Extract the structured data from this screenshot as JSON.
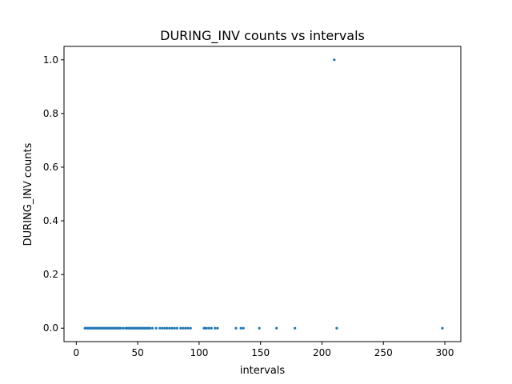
{
  "chart_data": {
    "type": "scatter",
    "title": "DURING_INV counts vs intervals",
    "xlabel": "intervals",
    "ylabel": "DURING_INV counts",
    "xlim": [
      -10,
      313
    ],
    "ylim": [
      -0.05,
      1.05
    ],
    "xticks": [
      0,
      50,
      100,
      150,
      200,
      250,
      300
    ],
    "yticks": [
      0.0,
      0.2,
      0.4,
      0.6,
      0.8,
      1.0
    ],
    "xtick_labels": [
      "0",
      "50",
      "100",
      "150",
      "200",
      "250",
      "300"
    ],
    "ytick_labels": [
      "0.0",
      "0.2",
      "0.4",
      "0.6",
      "0.8",
      "1.0"
    ],
    "grid": false,
    "color": "#1f77b4",
    "series": [
      {
        "x": [
          7,
          8,
          9,
          10,
          11,
          12,
          13,
          14,
          15,
          16,
          17,
          18,
          19,
          20,
          21,
          22,
          23,
          24,
          25,
          26,
          27,
          28,
          29,
          30,
          31,
          32,
          33,
          34,
          35,
          36,
          38,
          40,
          41,
          42,
          43,
          44,
          45,
          46,
          47,
          48,
          49,
          50,
          51,
          52,
          53,
          54,
          55,
          56,
          57,
          58,
          59,
          60,
          62,
          65,
          68,
          70,
          72,
          74,
          76,
          78,
          80,
          82,
          85,
          87,
          89,
          91,
          93,
          104,
          105,
          106,
          108,
          110,
          113,
          115,
          130,
          134,
          136,
          149,
          163,
          178,
          210,
          212,
          298
        ],
        "y": [
          0,
          0,
          0,
          0,
          0,
          0,
          0,
          0,
          0,
          0,
          0,
          0,
          0,
          0,
          0,
          0,
          0,
          0,
          0,
          0,
          0,
          0,
          0,
          0,
          0,
          0,
          0,
          0,
          0,
          0,
          0,
          0,
          0,
          0,
          0,
          0,
          0,
          0,
          0,
          0,
          0,
          0,
          0,
          0,
          0,
          0,
          0,
          0,
          0,
          0,
          0,
          0,
          0,
          0,
          0,
          0,
          0,
          0,
          0,
          0,
          0,
          0,
          0,
          0,
          0,
          0,
          0,
          0,
          0,
          0,
          0,
          0,
          0,
          0,
          0,
          0,
          0,
          0,
          0,
          0,
          1,
          0,
          0
        ]
      }
    ]
  }
}
